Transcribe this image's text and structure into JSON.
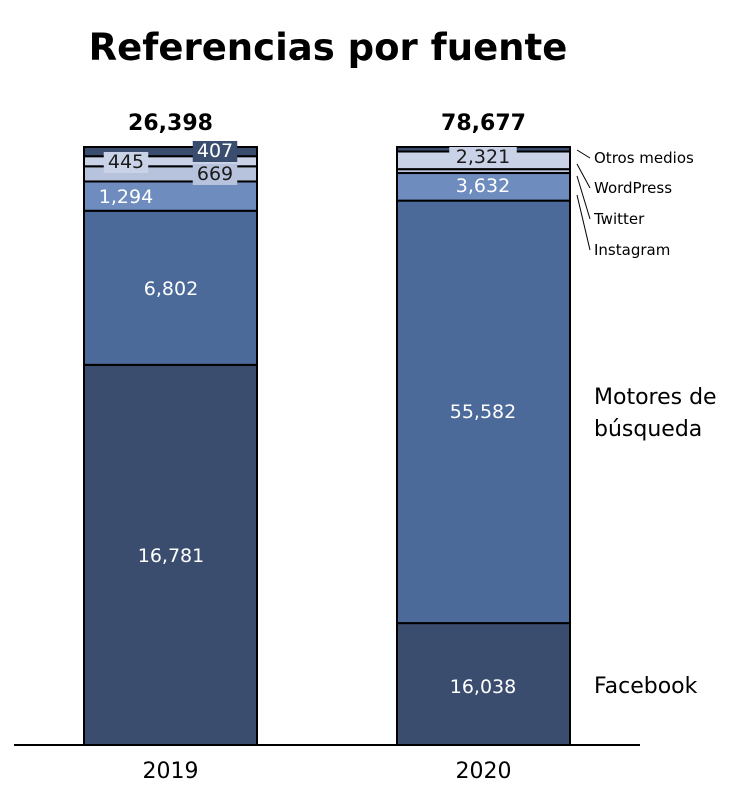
{
  "chart_data": {
    "type": "bar",
    "stacked": true,
    "title": "Referencias por fuente",
    "categories": [
      "2019",
      "2020"
    ],
    "totals": [
      "26,398",
      "78,677"
    ],
    "series": [
      {
        "name": "Facebook",
        "legend": "Facebook",
        "values": [
          16781,
          16038
        ],
        "labels": [
          "16,781",
          "16,038"
        ],
        "color": "#3b4d6f",
        "label_color": "#ffffff"
      },
      {
        "name": "Motores de búsqueda",
        "legend": [
          "Motores de",
          "búsqueda"
        ],
        "values": [
          6802,
          55582
        ],
        "labels": [
          "6,802",
          "55,582"
        ],
        "color": "#4b6a9a",
        "label_color": "#ffffff"
      },
      {
        "name": "Instagram",
        "legend": "Instagram",
        "values": [
          1294,
          3632
        ],
        "labels": [
          "1,294",
          "3,632"
        ],
        "color": "#6f8cbf",
        "label_color": "#ffffff"
      },
      {
        "name": "Twitter",
        "legend": "Twitter",
        "values": [
          669,
          511
        ],
        "labels": [
          "669",
          ""
        ],
        "color": "#b7c3dc",
        "label_color": "#1a1a1a"
      },
      {
        "name": "WordPress",
        "legend": "WordPress",
        "values": [
          445,
          2321
        ],
        "labels": [
          "445",
          "2,321"
        ],
        "color": "#c9d2e6",
        "label_color": "#1a1a1a"
      },
      {
        "name": "Otros medios",
        "legend": "Otros medios",
        "values": [
          407,
          593
        ],
        "labels": [
          "407",
          ""
        ],
        "color": "#3b4d6f",
        "label_color": "#ffffff"
      }
    ],
    "xlabel": "",
    "ylabel": "",
    "legend_position": "right"
  }
}
